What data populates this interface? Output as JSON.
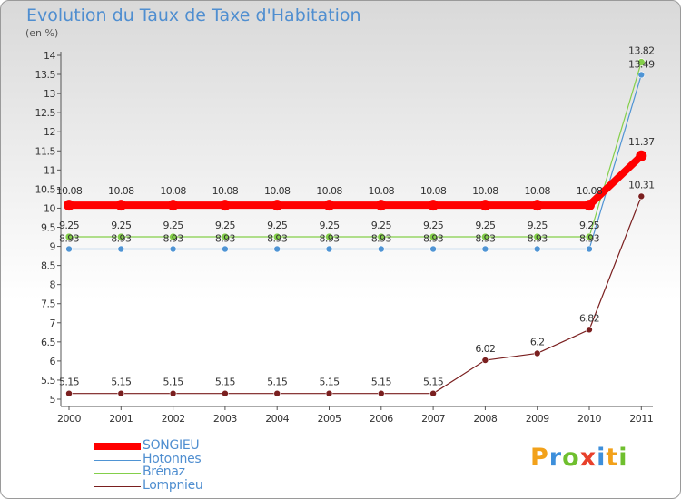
{
  "header": {
    "title": "Evolution du Taux de Taxe d'Habitation",
    "unit": "(en %)"
  },
  "logo": {
    "letters": [
      "P",
      "r",
      "o",
      "x",
      "i",
      "t",
      "i"
    ],
    "colors": [
      "#f2a11a",
      "#3d8fdb",
      "#6fbf2e",
      "#e8402b",
      "#3d8fdb",
      "#f2a11a",
      "#6fbf2e"
    ]
  },
  "chart_data": {
    "type": "line",
    "title": "Evolution du Taux de Taxe d'Habitation",
    "ylabel": "(en %)",
    "xlabel": "",
    "ylim": [
      5,
      14
    ],
    "ytick_step": 0.5,
    "grid": false,
    "x": [
      "2000",
      "2001",
      "2002",
      "2003",
      "2004",
      "2005",
      "2006",
      "2007",
      "2008",
      "2009",
      "2010",
      "2011"
    ],
    "series": [
      {
        "name": "SONGIEU",
        "color": "#ff0000",
        "values": [
          10.08,
          10.08,
          10.08,
          10.08,
          10.08,
          10.08,
          10.08,
          10.08,
          10.08,
          10.08,
          10.08,
          11.37
        ],
        "labels": [
          "10.08",
          "10.08",
          "10.08",
          "10.08",
          "10.08",
          "10.08",
          "10.08",
          "10.08",
          "10.08",
          "10.08",
          "10.08",
          "11.37"
        ]
      },
      {
        "name": "Hotonnes",
        "color": "#4f94d4",
        "values": [
          8.93,
          8.93,
          8.93,
          8.93,
          8.93,
          8.93,
          8.93,
          8.93,
          8.93,
          8.93,
          8.93,
          13.49
        ],
        "labels": [
          "8.93",
          "8.93",
          "8.93",
          "8.93",
          "8.93",
          "8.93",
          "8.93",
          "8.93",
          "8.93",
          "8.93",
          "8.93",
          "13.49"
        ]
      },
      {
        "name": "Brénaz",
        "color": "#84cf4a",
        "values": [
          9.25,
          9.25,
          9.25,
          9.25,
          9.25,
          9.25,
          9.25,
          9.25,
          9.25,
          9.25,
          9.25,
          13.82
        ],
        "labels": [
          "9.25",
          "9.25",
          "9.25",
          "9.25",
          "9.25",
          "9.25",
          "9.25",
          "9.25",
          "9.25",
          "9.25",
          "9.25",
          "13.82"
        ]
      },
      {
        "name": "Lompnieu",
        "color": "#7a1f1f",
        "values": [
          5.15,
          5.15,
          5.15,
          5.15,
          5.15,
          5.15,
          5.15,
          5.15,
          6.02,
          6.2,
          6.82,
          10.31
        ],
        "labels": [
          "5.15",
          "5.15",
          "5.15",
          "5.15",
          "5.15",
          "5.15",
          "5.15",
          "5.15",
          "6.02",
          "6.2",
          "6.82",
          "10.31"
        ]
      }
    ],
    "legend": "bottom-left"
  }
}
